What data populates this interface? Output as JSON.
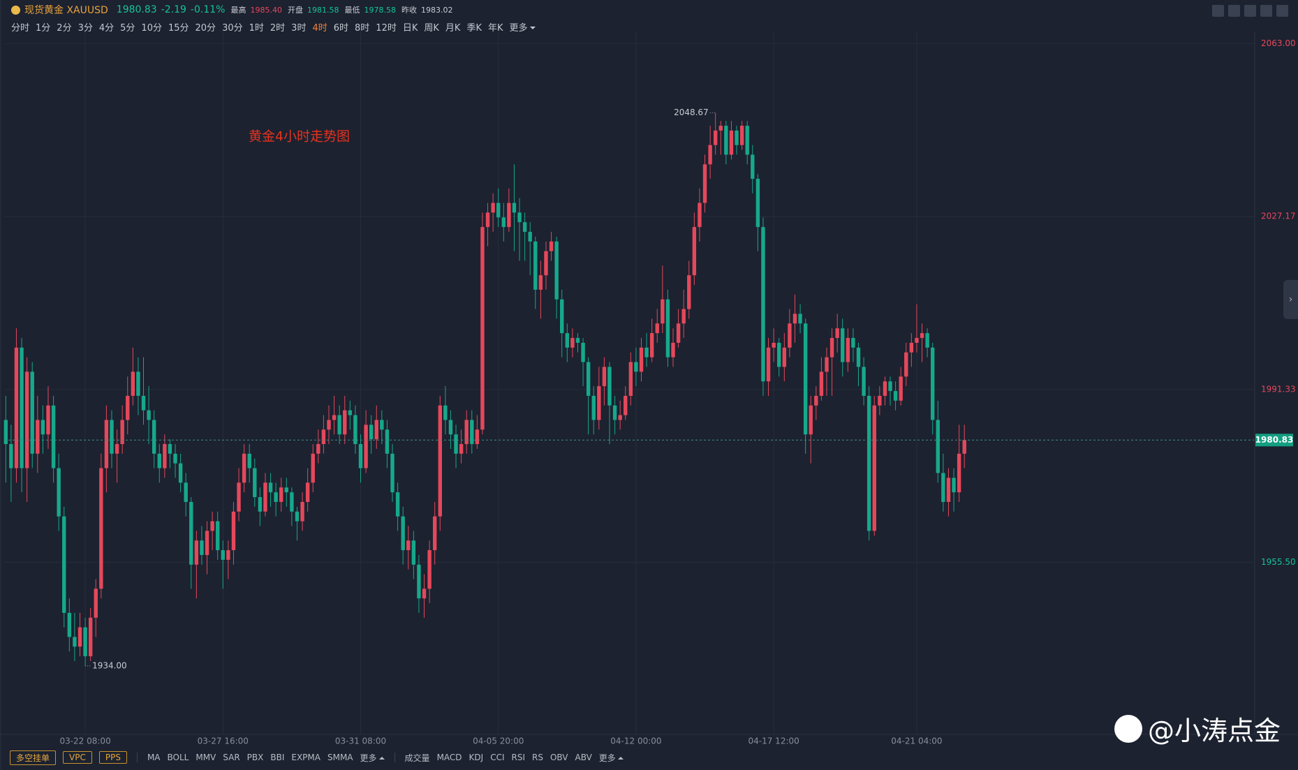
{
  "header": {
    "name": "现货黄金 XAUUSD",
    "price": "1980.83",
    "change": "-2.19",
    "change_pct": "-0.11%",
    "stats": [
      {
        "label": "最高",
        "value": "1985.40"
      },
      {
        "label": "开盘",
        "value": "1981.58"
      },
      {
        "label": "最低",
        "value": "1978.58"
      },
      {
        "label": "昨收",
        "value": "1983.02"
      }
    ]
  },
  "timeframes": [
    "分时",
    "1分",
    "2分",
    "3分",
    "4分",
    "5分",
    "10分",
    "15分",
    "20分",
    "30分",
    "1时",
    "2时",
    "3时",
    "4时",
    "6时",
    "8时",
    "12时",
    "日K",
    "周K",
    "月K",
    "季K",
    "年K",
    "更多"
  ],
  "active_timeframe": "4时",
  "toolbar": {
    "orders": [
      "多空挂单",
      "VPC",
      "PPS"
    ],
    "main_indicators": [
      "MA",
      "BOLL",
      "MMV",
      "SAR",
      "PBX",
      "BBI",
      "EXPMA",
      "SMMA",
      "更多"
    ],
    "sub_indicators": [
      "成交量",
      "MACD",
      "KDJ",
      "CCI",
      "RSI",
      "RS",
      "OBV",
      "ABV",
      "更多"
    ]
  },
  "watermark": "@小涛点金",
  "chart_data": {
    "type": "candlestick",
    "title": "黄金4小时走势图",
    "up_color": "#e5485b",
    "down_color": "#17a88b",
    "grid": true,
    "ylim": [
      1919.8,
      2064.4
    ],
    "yticks": [
      {
        "value": 1955.5,
        "label": "1955.50"
      },
      {
        "value": 1991.33,
        "label": "1991.33"
      },
      {
        "value": 2027.17,
        "label": "2027.17"
      },
      {
        "value": 2063,
        "label": "2063.00"
      }
    ],
    "high_label": "2048.67",
    "low_label": "1934.00",
    "last_price_label": "1980.83",
    "categories": [
      null,
      null,
      null,
      null,
      null,
      null,
      null,
      null,
      null,
      null,
      null,
      null,
      null,
      null,
      null,
      "03-22 08:00",
      null,
      null,
      null,
      null,
      null,
      null,
      null,
      null,
      null,
      null,
      null,
      null,
      null,
      null,
      null,
      null,
      null,
      null,
      null,
      null,
      null,
      null,
      null,
      null,
      null,
      "03-27 16:00",
      null,
      null,
      null,
      null,
      null,
      null,
      null,
      null,
      null,
      null,
      null,
      null,
      null,
      null,
      null,
      null,
      null,
      null,
      null,
      null,
      null,
      null,
      null,
      null,
      null,
      "03-31 08:00",
      null,
      null,
      null,
      null,
      null,
      null,
      null,
      null,
      null,
      null,
      null,
      null,
      null,
      null,
      null,
      null,
      null,
      null,
      null,
      null,
      null,
      null,
      null,
      null,
      null,
      "04-05 20:00",
      null,
      null,
      null,
      null,
      null,
      null,
      null,
      null,
      null,
      null,
      null,
      null,
      null,
      null,
      null,
      null,
      null,
      null,
      null,
      null,
      null,
      null,
      null,
      null,
      null,
      "04-12 00:00",
      null,
      null,
      null,
      null,
      null,
      null,
      null,
      null,
      null,
      null,
      null,
      null,
      null,
      null,
      null,
      null,
      null,
      null,
      null,
      null,
      null,
      null,
      null,
      null,
      null,
      "04-17 12:00",
      null,
      null,
      null,
      null,
      null,
      null,
      null,
      null,
      null,
      null,
      null,
      null,
      null,
      null,
      null,
      null,
      null,
      null,
      null,
      null,
      null,
      null,
      null,
      null,
      null,
      null,
      "04-21 04:00",
      null,
      null,
      null,
      null,
      null,
      null,
      null,
      null,
      null
    ],
    "candles": [
      [
        1985,
        1990,
        1972,
        1980
      ],
      [
        1980,
        1984,
        1968,
        1975
      ],
      [
        1975,
        2004,
        1972,
        2000
      ],
      [
        2000,
        2002,
        1970,
        1975
      ],
      [
        1975,
        1998,
        1968,
        1995
      ],
      [
        1995,
        1997,
        1975,
        1978
      ],
      [
        1978,
        1990,
        1974,
        1985
      ],
      [
        1985,
        1988,
        1978,
        1982
      ],
      [
        1982,
        1992,
        1979,
        1988
      ],
      [
        1988,
        1990,
        1972,
        1975
      ],
      [
        1975,
        1978,
        1962,
        1965
      ],
      [
        1965,
        1967,
        1942,
        1945
      ],
      [
        1945,
        1948,
        1937,
        1940
      ],
      [
        1940,
        1945,
        1935,
        1938
      ],
      [
        1938,
        1945,
        1936,
        1942
      ],
      [
        1942,
        1944,
        1934,
        1936
      ],
      [
        1936,
        1946,
        1935,
        1944
      ],
      [
        1944,
        1952,
        1940,
        1950
      ],
      [
        1950,
        1978,
        1948,
        1975
      ],
      [
        1975,
        1988,
        1970,
        1985
      ],
      [
        1985,
        1987,
        1975,
        1978
      ],
      [
        1978,
        1983,
        1972,
        1980
      ],
      [
        1980,
        1988,
        1978,
        1985
      ],
      [
        1985,
        1994,
        1982,
        1990
      ],
      [
        1990,
        2000,
        1988,
        1995
      ],
      [
        1995,
        1998,
        1986,
        1990
      ],
      [
        1990,
        1998,
        1984,
        1987
      ],
      [
        1987,
        1992,
        1980,
        1985
      ],
      [
        1985,
        1987,
        1975,
        1978
      ],
      [
        1978,
        1980,
        1972,
        1975
      ],
      [
        1975,
        1982,
        1973,
        1980
      ],
      [
        1980,
        1981,
        1975,
        1978
      ],
      [
        1978,
        1980,
        1973,
        1976
      ],
      [
        1976,
        1978,
        1970,
        1972
      ],
      [
        1972,
        1974,
        1965,
        1968
      ],
      [
        1968,
        1969,
        1950,
        1955
      ],
      [
        1955,
        1962,
        1948,
        1960
      ],
      [
        1960,
        1963,
        1955,
        1957
      ],
      [
        1957,
        1964,
        1953,
        1962
      ],
      [
        1962,
        1966,
        1958,
        1964
      ],
      [
        1964,
        1966,
        1956,
        1958
      ],
      [
        1958,
        1960,
        1950,
        1956
      ],
      [
        1956,
        1960,
        1952,
        1958
      ],
      [
        1958,
        1968,
        1955,
        1966
      ],
      [
        1966,
        1975,
        1964,
        1972
      ],
      [
        1972,
        1980,
        1970,
        1978
      ],
      [
        1978,
        1980,
        1972,
        1975
      ],
      [
        1975,
        1977,
        1967,
        1969
      ],
      [
        1969,
        1971,
        1963,
        1966
      ],
      [
        1966,
        1974,
        1965,
        1972
      ],
      [
        1972,
        1974,
        1967,
        1970
      ],
      [
        1970,
        1972,
        1965,
        1968
      ],
      [
        1968,
        1973,
        1966,
        1971
      ],
      [
        1971,
        1973,
        1967,
        1970
      ],
      [
        1970,
        1971,
        1963,
        1966
      ],
      [
        1966,
        1967,
        1960,
        1964
      ],
      [
        1964,
        1970,
        1962,
        1968
      ],
      [
        1968,
        1975,
        1966,
        1972
      ],
      [
        1972,
        1980,
        1970,
        1978
      ],
      [
        1978,
        1983,
        1976,
        1980
      ],
      [
        1980,
        1986,
        1978,
        1983
      ],
      [
        1983,
        1988,
        1980,
        1985
      ],
      [
        1985,
        1990,
        1982,
        1986
      ],
      [
        1986,
        1988,
        1980,
        1982
      ],
      [
        1982,
        1990,
        1980,
        1987
      ],
      [
        1987,
        1989,
        1983,
        1986
      ],
      [
        1986,
        1988,
        1978,
        1980
      ],
      [
        1980,
        1982,
        1972,
        1975
      ],
      [
        1975,
        1987,
        1974,
        1984
      ],
      [
        1984,
        1986,
        1978,
        1981
      ],
      [
        1981,
        1988,
        1979,
        1985
      ],
      [
        1985,
        1987,
        1980,
        1983
      ],
      [
        1983,
        1985,
        1975,
        1978
      ],
      [
        1978,
        1980,
        1968,
        1970
      ],
      [
        1970,
        1972,
        1962,
        1965
      ],
      [
        1965,
        1967,
        1955,
        1958
      ],
      [
        1958,
        1963,
        1954,
        1960
      ],
      [
        1960,
        1962,
        1952,
        1955
      ],
      [
        1955,
        1957,
        1945,
        1948
      ],
      [
        1948,
        1953,
        1944,
        1950
      ],
      [
        1950,
        1960,
        1947,
        1958
      ],
      [
        1958,
        1968,
        1955,
        1965
      ],
      [
        1965,
        1990,
        1962,
        1988
      ],
      [
        1988,
        1992,
        1982,
        1985
      ],
      [
        1985,
        1987,
        1979,
        1982
      ],
      [
        1982,
        1984,
        1975,
        1978
      ],
      [
        1978,
        1983,
        1976,
        1980
      ],
      [
        1980,
        1987,
        1978,
        1985
      ],
      [
        1985,
        1987,
        1978,
        1980
      ],
      [
        1980,
        1986,
        1979,
        1983
      ],
      [
        1983,
        2028,
        1982,
        2025
      ],
      [
        2025,
        2030,
        2021,
        2028
      ],
      [
        2028,
        2032,
        2024,
        2030
      ],
      [
        2030,
        2033,
        2025,
        2027
      ],
      [
        2027,
        2030,
        2022,
        2025
      ],
      [
        2025,
        2033,
        2024,
        2030
      ],
      [
        2030,
        2038,
        2020,
        2028
      ],
      [
        2028,
        2031,
        2018,
        2026
      ],
      [
        2026,
        2028,
        2018,
        2024
      ],
      [
        2024,
        2026,
        2015,
        2022
      ],
      [
        2022,
        2023,
        2008,
        2012
      ],
      [
        2012,
        2018,
        2006,
        2015
      ],
      [
        2015,
        2022,
        2012,
        2020
      ],
      [
        2020,
        2024,
        2018,
        2022
      ],
      [
        2022,
        2023,
        2006,
        2010
      ],
      [
        2010,
        2012,
        1998,
        2003
      ],
      [
        2003,
        2005,
        1997,
        2000
      ],
      [
        2000,
        2004,
        1998,
        2002
      ],
      [
        2002,
        2003,
        1999,
        2001
      ],
      [
        2001,
        2002,
        1992,
        1997
      ],
      [
        1997,
        1998,
        1982,
        1990
      ],
      [
        1990,
        1992,
        1982,
        1985
      ],
      [
        1985,
        1996,
        1983,
        1992
      ],
      [
        1992,
        1998,
        1988,
        1996
      ],
      [
        1996,
        1997,
        1980,
        1988
      ],
      [
        1988,
        1990,
        1982,
        1985
      ],
      [
        1985,
        1989,
        1983,
        1986
      ],
      [
        1986,
        1992,
        1985,
        1990
      ],
      [
        1990,
        1999,
        1988,
        1997
      ],
      [
        1997,
        2000,
        1992,
        1995
      ],
      [
        1995,
        2002,
        1993,
        2000
      ],
      [
        2000,
        2003,
        1996,
        1998
      ],
      [
        1998,
        2006,
        1997,
        2003
      ],
      [
        2003,
        2008,
        2001,
        2005
      ],
      [
        2005,
        2017,
        2003,
        2010
      ],
      [
        2010,
        2012,
        1996,
        1998
      ],
      [
        1998,
        2004,
        1996,
        2001
      ],
      [
        2001,
        2008,
        2000,
        2005
      ],
      [
        2005,
        2012,
        2002,
        2008
      ],
      [
        2008,
        2018,
        2006,
        2015
      ],
      [
        2015,
        2028,
        2013,
        2025
      ],
      [
        2025,
        2033,
        2022,
        2030
      ],
      [
        2030,
        2040,
        2028,
        2038
      ],
      [
        2038,
        2046,
        2035,
        2042
      ],
      [
        2042,
        2048.67,
        2040,
        2045
      ],
      [
        2045,
        2047,
        2040,
        2046
      ],
      [
        2046,
        2047,
        2038,
        2040
      ],
      [
        2040,
        2047,
        2039,
        2045
      ],
      [
        2045,
        2046,
        2040,
        2042
      ],
      [
        2042,
        2047,
        2041,
        2046
      ],
      [
        2046,
        2047,
        2038,
        2040
      ],
      [
        2040,
        2042,
        2032,
        2035
      ],
      [
        2035,
        2036,
        2020,
        2025
      ],
      [
        2025,
        2027,
        1990,
        1993
      ],
      [
        1993,
        2002,
        1990,
        2000
      ],
      [
        2000,
        2004,
        1997,
        2001
      ],
      [
        2001,
        2002,
        1994,
        1996
      ],
      [
        1996,
        2003,
        1993,
        2000
      ],
      [
        2000,
        2008,
        1998,
        2005
      ],
      [
        2005,
        2011,
        2001,
        2007
      ],
      [
        2007,
        2009,
        2003,
        2005
      ],
      [
        2005,
        2006,
        1978,
        1982
      ],
      [
        1982,
        1990,
        1976,
        1988
      ],
      [
        1988,
        1992,
        1985,
        1990
      ],
      [
        1990,
        1998,
        1989,
        1995
      ],
      [
        1995,
        2000,
        1990,
        1998
      ],
      [
        1998,
        2004,
        1990,
        2002
      ],
      [
        2002,
        2007,
        1999,
        2004
      ],
      [
        2004,
        2006,
        1994,
        1997
      ],
      [
        1997,
        2004,
        1995,
        2002
      ],
      [
        2002,
        2004,
        1997,
        2000
      ],
      [
        2000,
        2001,
        1992,
        1996
      ],
      [
        1996,
        1998,
        1988,
        1990
      ],
      [
        1990,
        1992,
        1960,
        1962
      ],
      [
        1962,
        1990,
        1961,
        1988
      ],
      [
        1988,
        1992,
        1986,
        1990
      ],
      [
        1990,
        1994,
        1988,
        1993
      ],
      [
        1993,
        1994,
        1988,
        1991
      ],
      [
        1991,
        1993,
        1987,
        1989
      ],
      [
        1989,
        1996,
        1988,
        1994
      ],
      [
        1994,
        2001,
        1992,
        1999
      ],
      [
        1999,
        2003,
        1996,
        2001
      ],
      [
        2001,
        2009,
        1999,
        2002
      ],
      [
        2002,
        2005,
        1997,
        2003
      ],
      [
        2003,
        2004,
        1998,
        2000
      ],
      [
        2000,
        2001,
        1982,
        1985
      ],
      [
        1985,
        1989,
        1972,
        1974
      ],
      [
        1974,
        1978,
        1966,
        1968
      ],
      [
        1968,
        1975,
        1965,
        1973
      ],
      [
        1973,
        1975,
        1966,
        1970
      ],
      [
        1970,
        1984,
        1968,
        1978
      ],
      [
        1978,
        1984,
        1975,
        1980.83
      ]
    ]
  }
}
